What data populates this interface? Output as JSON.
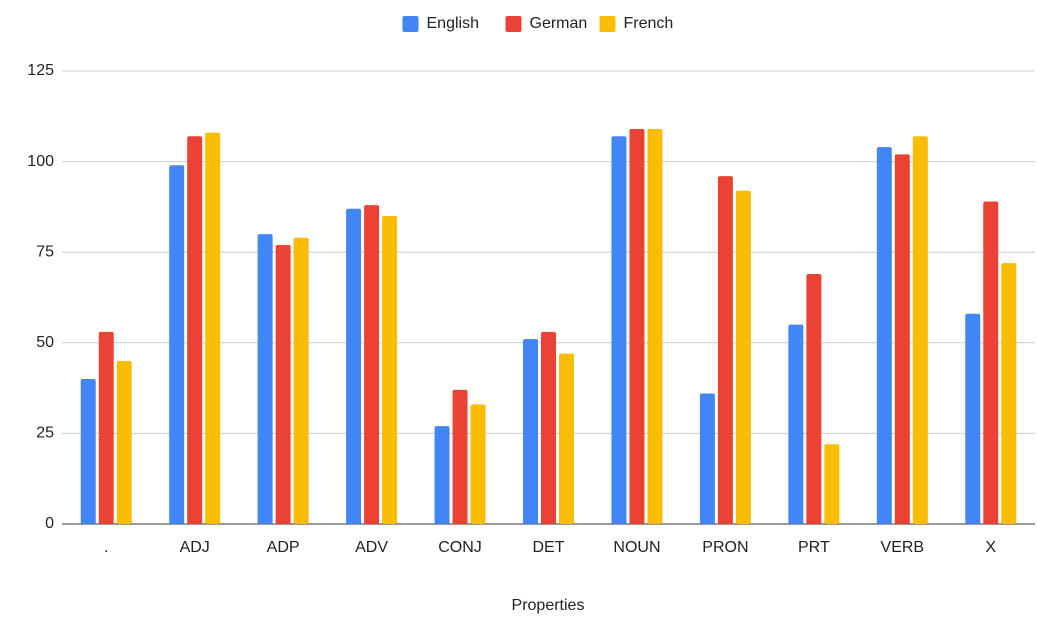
{
  "chart_data": {
    "type": "bar",
    "x_label": "Properties",
    "categories": [
      ".",
      "ADJ",
      "ADP",
      "ADV",
      "CONJ",
      "DET",
      "NOUN",
      "PRON",
      "PRT",
      "VERB",
      "X"
    ],
    "series": [
      {
        "name": "English",
        "color": "#4285f4",
        "values": [
          40,
          99,
          80,
          87,
          27,
          51,
          107,
          36,
          55,
          104,
          58
        ]
      },
      {
        "name": "German",
        "color": "#ea4335",
        "values": [
          53,
          107,
          77,
          88,
          37,
          53,
          109,
          96,
          69,
          102,
          89
        ]
      },
      {
        "name": "French",
        "color": "#fbbc04",
        "values": [
          45,
          108,
          79,
          85,
          33,
          47,
          109,
          92,
          22,
          107,
          72
        ]
      }
    ],
    "ylim": [
      0,
      125
    ],
    "yticks": [
      0,
      25,
      50,
      75,
      100,
      125
    ],
    "grid": true,
    "legend": "top"
  }
}
